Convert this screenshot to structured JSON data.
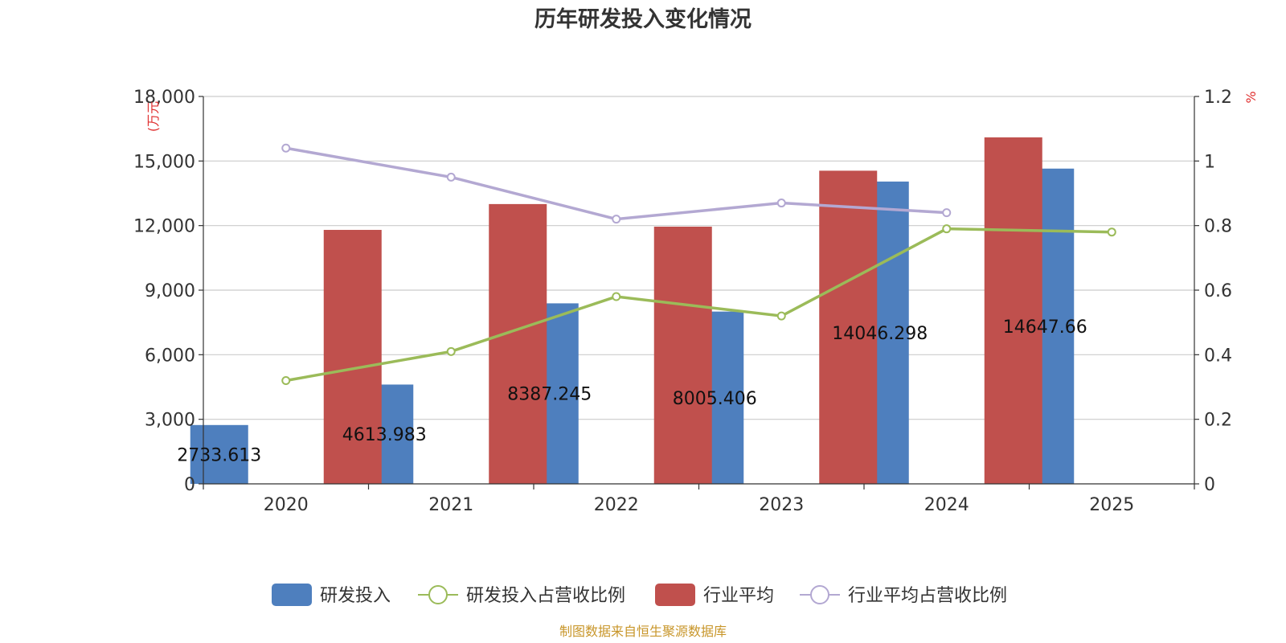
{
  "chart_data": {
    "type": "bar",
    "title": "历年研发投入变化情况",
    "categories": [
      "2020",
      "2021",
      "2022",
      "2023",
      "2024",
      "2025"
    ],
    "y_left": {
      "unit_label": "(万元",
      "ylim": [
        0,
        18000
      ],
      "ticks": [
        0,
        3000,
        6000,
        9000,
        12000,
        15000,
        18000
      ],
      "tick_labels": [
        "0",
        "3,000",
        "6,000",
        "9,000",
        "12,000",
        "15,000",
        "18,000"
      ]
    },
    "y_right": {
      "unit_label": "%",
      "ylim": [
        0,
        1.2
      ],
      "ticks": [
        0,
        0.2,
        0.4,
        0.6,
        0.8,
        1.0,
        1.2
      ],
      "tick_labels": [
        "0",
        "0.2",
        "0.4",
        "0.6",
        "0.8",
        "1",
        "1.2"
      ]
    },
    "grid": true,
    "legend_position": "bottom",
    "series": [
      {
        "name": "研发投入",
        "type": "bar",
        "axis": "left",
        "color": "#4e7fbe",
        "values": [
          2733.613,
          4613.983,
          8387.245,
          8005.406,
          14046.298,
          14647.66
        ],
        "labels": [
          "2733.613",
          "4613.983",
          "8387.245",
          "8005.406",
          "14046.298",
          "14647.66"
        ]
      },
      {
        "name": "研发投入占营收比例",
        "type": "line",
        "axis": "right",
        "color": "#9bbb59",
        "values": [
          0.32,
          0.41,
          0.58,
          0.52,
          0.79,
          0.78
        ]
      },
      {
        "name": "行业平均",
        "type": "bar",
        "axis": "left",
        "color": "#c0504d",
        "values": [
          11800,
          13000,
          11950,
          14550,
          16100,
          null
        ]
      },
      {
        "name": "行业平均占营收比例",
        "type": "line",
        "axis": "right",
        "color": "#b3a8d2",
        "values": [
          1.04,
          0.95,
          0.82,
          0.87,
          0.84,
          null
        ]
      }
    ],
    "source": "制图数据来自恒生聚源数据库"
  }
}
